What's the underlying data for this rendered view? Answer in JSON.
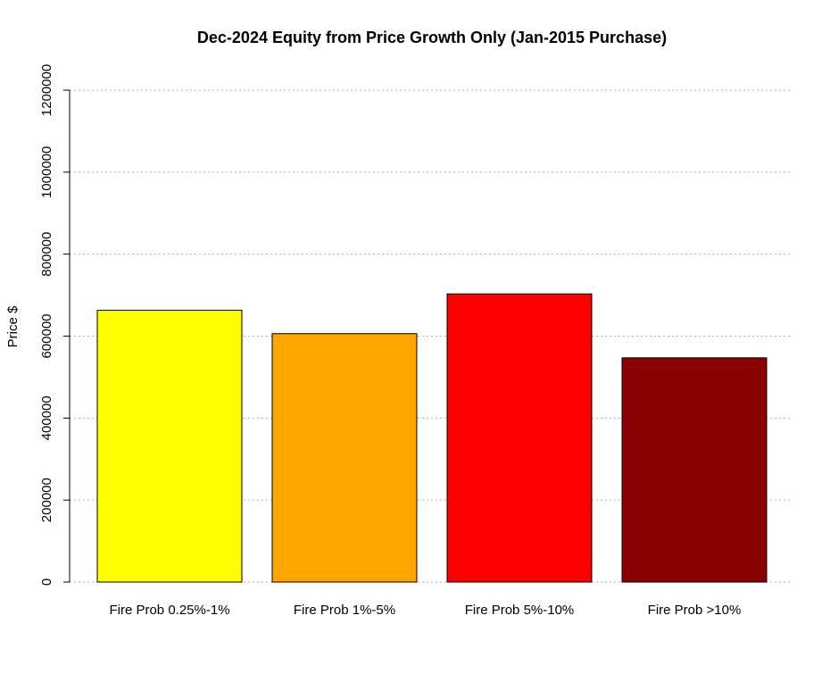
{
  "chart_data": {
    "type": "bar",
    "title": "Dec-2024 Equity from Price Growth Only (Jan-2015 Purchase)",
    "xlabel": "",
    "ylabel": "Price $",
    "categories": [
      "Fire Prob 0.25%-1%",
      "Fire Prob 1%-5%",
      "Fire Prob 5%-10%",
      "Fire Prob >10%"
    ],
    "values": [
      663000,
      606000,
      703000,
      547000
    ],
    "colors": [
      "#ffff00",
      "#ffa500",
      "#ff0000",
      "#8b0000"
    ],
    "ylim": [
      0,
      1200000
    ],
    "yticks": [
      0,
      200000,
      400000,
      600000,
      800000,
      1000000,
      1200000
    ],
    "ytick_labels": [
      "0",
      "200000",
      "400000",
      "600000",
      "800000",
      "1000000",
      "1200000"
    ],
    "grid": "horizontal-dotted",
    "legend": "none"
  }
}
